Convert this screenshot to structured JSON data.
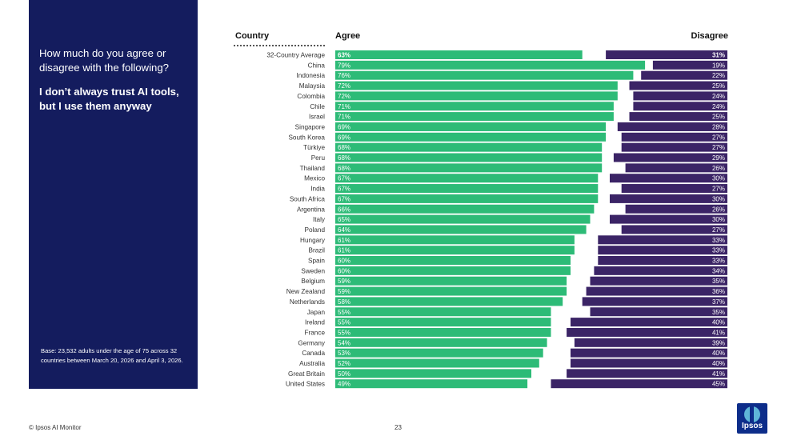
{
  "panel": {
    "question": "How much do you agree or disagree with the following?",
    "statement": "I don’t always trust AI tools, but I use them anyway",
    "base": "Base: 23,532 adults under the age of 75 across 32 countries between March 20, 2026 and April 3, 2026."
  },
  "footer": {
    "copyright": "© Ipsos AI Monitor",
    "page": "23",
    "logo_text": "Ipsos"
  },
  "colors": {
    "agree": "#2dbb77",
    "disagree": "#3b2466",
    "panel": "#141c5e"
  },
  "chart_data": {
    "type": "bar",
    "orientation": "horizontal-stacked",
    "column_headers": {
      "category": "Country",
      "agree": "Agree",
      "disagree": "Disagree"
    },
    "categories": [
      "32-Country Average",
      "China",
      "Indonesia",
      "Malaysia",
      "Colombia",
      "Chile",
      "Israel",
      "Singapore",
      "South Korea",
      "Türkiye",
      "Peru",
      "Thailand",
      "Mexico",
      "India",
      "South Africa",
      "Argentina",
      "Italy",
      "Poland",
      "Hungary",
      "Brazil",
      "Spain",
      "Sweden",
      "Belgium",
      "New Zealand",
      "Netherlands",
      "Japan",
      "Ireland",
      "France",
      "Germany",
      "Canada",
      "Australia",
      "Great Britain",
      "United States"
    ],
    "series": [
      {
        "name": "Agree",
        "values": [
          63,
          79,
          76,
          72,
          72,
          71,
          71,
          69,
          69,
          68,
          68,
          68,
          67,
          67,
          67,
          66,
          65,
          64,
          61,
          61,
          60,
          60,
          59,
          59,
          58,
          55,
          55,
          55,
          54,
          53,
          52,
          50,
          49
        ]
      },
      {
        "name": "Disagree",
        "values": [
          31,
          19,
          22,
          25,
          24,
          24,
          25,
          28,
          27,
          27,
          29,
          26,
          30,
          27,
          30,
          26,
          30,
          27,
          33,
          33,
          33,
          34,
          35,
          36,
          37,
          35,
          40,
          41,
          39,
          40,
          40,
          41,
          45
        ]
      }
    ],
    "value_suffix": "%",
    "xlim": [
      0,
      100
    ]
  }
}
